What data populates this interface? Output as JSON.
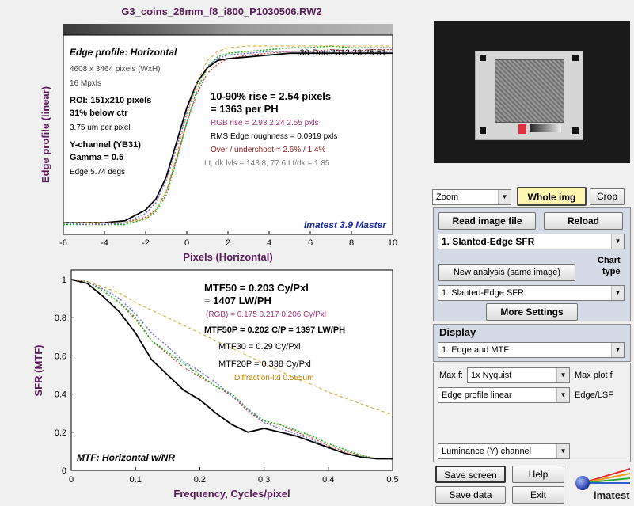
{
  "window": {
    "title": "G3_coins_28mm_f8_i800_P1030506.RW2"
  },
  "colors": {
    "bg": "#f0f0f0",
    "title": "#5a1a5a",
    "purple_axis": "#5a1a5a",
    "red": "#d03030",
    "green": "#20b020",
    "blue": "#6b6bd8",
    "black": "#000000",
    "orange": "#d8a020",
    "panel": "#d5dbe6",
    "whole_img": "#fff6b0"
  },
  "edge_plot": {
    "header": "Edge profile: Horizontal",
    "date": "30-Dec-2012 23:25:51",
    "xlabel": "Pixels (Horizontal)",
    "ylabel": "Edge profile (linear)",
    "xticks": [
      "-6",
      "-4",
      "-2",
      "0",
      "2",
      "4",
      "6",
      "8",
      "10"
    ],
    "info": {
      "size": "4608 x 3464 pixels (WxH)",
      "mpxls": "16 Mpxls",
      "roi": "ROI:  151x210 pixels",
      "below": "31% below ctr",
      "um": "3.75 um per pixel",
      "channel": "Y-channel  (YB31)",
      "gamma": "Gamma = 0.5",
      "edge": "Edge 5.74 degs"
    },
    "rise1": "10-90% rise = 2.54 pixels",
    "rise2": "= 1363 per PH",
    "rgb_rise": "RGB rise = 2.93  2.24  2.55 pxls",
    "rms": "RMS Edge roughness = 0.0919 pxls",
    "over": "Over / undershoot = 2.6% / 1.4%",
    "lt": "Lt, dk lvls = 143.8, 77.6   Lt/dk = 1.85",
    "brand": "Imatest 3.9 Master"
  },
  "mtf_plot": {
    "xlabel": "Frequency, Cycles/pixel",
    "ylabel": "SFR (MTF)",
    "xticks": [
      "0",
      "0.1",
      "0.2",
      "0.3",
      "0.4",
      "0.5"
    ],
    "yticks": [
      "0",
      "0.2",
      "0.4",
      "0.6",
      "0.8",
      "1"
    ],
    "mtf50": "MTF50 = 0.203 Cy/Pxl",
    "lwph": "= 1407 LW/PH",
    "rgb": "(RGB) = 0.175  0.217  0.206 Cy/Pxl",
    "mtf50p": "MTF50P = 0.202 C/P = 1397 LW/PH",
    "mtf30": "MTF30 = 0.29 Cy/Pxl",
    "mtf20p": "MTF20P = 0.338 Cy/Pxl",
    "diff": "Diffraction-ltd  0.555um",
    "footer": "MTF: Horizontal w/NR"
  },
  "controls": {
    "zoom": "Zoom",
    "whole_img": "Whole img",
    "crop": "Crop",
    "read_image": "Read image file",
    "reload": "Reload",
    "analysis_select": "1. Slanted-Edge SFR",
    "chart_type_1": "Chart",
    "chart_type_2": "type",
    "new_analysis": "New analysis (same image)",
    "analysis_select2": "1. Slanted-Edge SFR",
    "more_settings": "More Settings",
    "display": "Display",
    "display_select": "1. Edge and MTF",
    "maxf": "Max f:",
    "nyquist": "1x Nyquist",
    "max_plot_f": "Max plot f",
    "edge_profile": "Edge profile linear",
    "edge_lsf": "Edge/LSF",
    "luminance": "Luminance (Y) channel",
    "save_screen": "Save screen",
    "help": "Help",
    "save_data": "Save data",
    "exit": "Exit",
    "logo": "imatest"
  },
  "chart_data": [
    {
      "type": "line",
      "title": "Edge profile: Horizontal",
      "xlabel": "Pixels (Horizontal)",
      "ylabel": "Edge profile (linear)",
      "xlim": [
        -6,
        10
      ],
      "x": [
        -6,
        -5,
        -4,
        -3,
        -2,
        -1.5,
        -1,
        -0.5,
        0,
        0.5,
        1,
        1.5,
        2,
        3,
        4,
        5,
        6,
        7,
        8,
        9,
        10
      ],
      "series": [
        {
          "values": [
            0.03,
            0.03,
            0.02,
            0.03,
            0.06,
            0.1,
            0.2,
            0.38,
            0.58,
            0.74,
            0.85,
            0.9,
            0.93,
            0.95,
            0.96,
            0.97,
            0.97,
            0.98,
            0.97,
            0.98,
            0.98
          ]
        },
        {
          "values": [
            0.02,
            0.02,
            0.02,
            0.02,
            0.05,
            0.09,
            0.18,
            0.37,
            0.58,
            0.76,
            0.88,
            0.94,
            0.96,
            0.97,
            0.98,
            0.99,
            0.99,
            1.0,
            0.99,
            0.99,
            0.99
          ]
        },
        {
          "values": [
            0.03,
            0.02,
            0.02,
            0.03,
            0.08,
            0.14,
            0.26,
            0.44,
            0.63,
            0.79,
            0.89,
            0.93,
            0.95,
            0.96,
            0.97,
            0.97,
            0.97,
            0.97,
            0.97,
            0.97,
            0.97
          ]
        },
        {
          "values": [
            0.03,
            0.03,
            0.03,
            0.04,
            0.1,
            0.16,
            0.28,
            0.47,
            0.66,
            0.8,
            0.88,
            0.92,
            0.93,
            0.94,
            0.95,
            0.96,
            0.96,
            0.96,
            0.96,
            0.96,
            0.96
          ]
        },
        {
          "values": [
            0.03,
            0.03,
            0.03,
            0.03,
            0.05,
            0.1,
            0.2,
            0.4,
            0.62,
            0.8,
            0.92,
            0.97,
            0.99,
            1.0,
            1.0,
            1.0,
            1.0,
            1.0,
            1.0,
            1.0,
            1.0
          ]
        }
      ]
    },
    {
      "type": "line",
      "title": "MTF: Horizontal w/NR",
      "xlabel": "Frequency, Cycles/pixel",
      "ylabel": "SFR (MTF)",
      "xlim": [
        0,
        0.5
      ],
      "ylim": [
        0,
        1.05
      ],
      "x": [
        0,
        0.025,
        0.05,
        0.075,
        0.1,
        0.125,
        0.15,
        0.175,
        0.2,
        0.225,
        0.25,
        0.275,
        0.3,
        0.325,
        0.35,
        0.375,
        0.4,
        0.425,
        0.45,
        0.475,
        0.5
      ],
      "series": [
        {
          "values": [
            1.0,
            0.99,
            0.94,
            0.88,
            0.79,
            0.68,
            0.61,
            0.54,
            0.49,
            0.44,
            0.39,
            0.31,
            0.25,
            0.24,
            0.2,
            0.17,
            0.13,
            0.1,
            0.08,
            0.06,
            0.06
          ]
        },
        {
          "values": [
            1.0,
            0.99,
            0.94,
            0.88,
            0.8,
            0.68,
            0.62,
            0.56,
            0.5,
            0.44,
            0.4,
            0.32,
            0.26,
            0.24,
            0.21,
            0.18,
            0.14,
            0.11,
            0.08,
            0.06,
            0.06
          ]
        },
        {
          "values": [
            1.0,
            0.99,
            0.95,
            0.9,
            0.82,
            0.72,
            0.65,
            0.57,
            0.52,
            0.46,
            0.39,
            0.32,
            0.25,
            0.22,
            0.19,
            0.16,
            0.12,
            0.09,
            0.07,
            0.06,
            0.06
          ]
        },
        {
          "values": [
            1.0,
            0.98,
            0.91,
            0.83,
            0.72,
            0.58,
            0.5,
            0.42,
            0.37,
            0.3,
            0.24,
            0.2,
            0.22,
            0.2,
            0.18,
            0.15,
            0.12,
            0.09,
            0.07,
            0.06,
            0.06
          ]
        },
        {
          "values": [
            1.0,
            0.99,
            0.96,
            0.93,
            0.88,
            0.84,
            0.8,
            0.76,
            0.72,
            0.68,
            0.64,
            0.6,
            0.56,
            0.52,
            0.48,
            0.45,
            0.41,
            0.38,
            0.35,
            0.32,
            0.29
          ]
        }
      ]
    }
  ]
}
